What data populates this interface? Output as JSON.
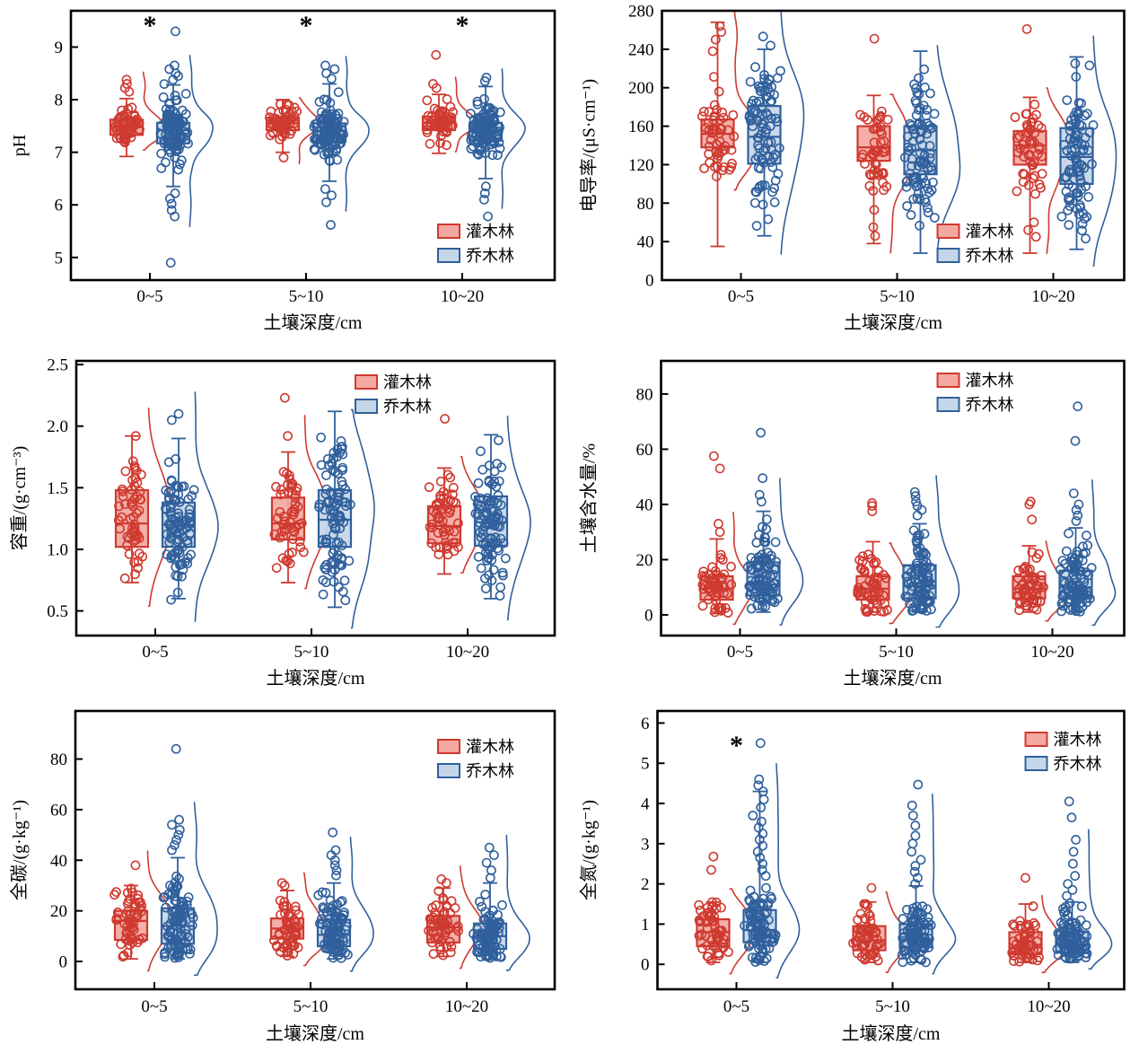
{
  "figure_title": "",
  "colors": {
    "shrub_stroke": "#cf3a30",
    "shrub_fill": "#f3a8a1",
    "arbor_stroke": "#30609c",
    "arbor_fill": "#c5d6e9",
    "axis": "#000000"
  },
  "legend": {
    "shrub_label": "灌木林",
    "arbor_label": "乔木林"
  },
  "chart_data": [
    {
      "type": "raincloud-box",
      "id": "ph",
      "row": 1,
      "ylabel": "pH",
      "xlabel": "土壤深度/cm",
      "categories": [
        "0~5",
        "5~10",
        "10~20"
      ],
      "ylim": [
        4.57,
        9.69
      ],
      "yticks": [
        5,
        6,
        7,
        8,
        9
      ],
      "ytick_decimals": 0,
      "x0": 79,
      "legend_pos": [
        488,
        250
      ],
      "sig": {
        "marks": [
          "*",
          "*",
          "*"
        ],
        "y": 9.42
      },
      "cats": [
        {
          "label": "0~5",
          "shrub": {
            "n": 55,
            "q1": 7.33,
            "med": 7.48,
            "q3": 7.62,
            "wlo": 6.92,
            "whi": 8.02,
            "lo": 6.9,
            "hi": 8.08,
            "tail": [
              8.15,
              8.22,
              8.3,
              8.38
            ],
            "out": []
          },
          "arbor": {
            "n": 105,
            "q1": 7.17,
            "med": 7.42,
            "q3": 7.56,
            "wlo": 6.35,
            "whi": 8.28,
            "lo": 6.3,
            "hi": 8.3,
            "tail": [
              8.38,
              8.45,
              8.5,
              8.58,
              8.65,
              6.22,
              6.12,
              6.02,
              5.9,
              5.78
            ],
            "out": [
              9.3,
              4.9
            ]
          }
        },
        {
          "label": "5~10",
          "shrub": {
            "n": 55,
            "q1": 7.42,
            "med": 7.55,
            "q3": 7.66,
            "wlo": 7.0,
            "whi": 8.0,
            "lo": 6.92,
            "hi": 8.05,
            "tail": [
              6.9
            ],
            "out": []
          },
          "arbor": {
            "n": 105,
            "q1": 7.2,
            "med": 7.4,
            "q3": 7.55,
            "wlo": 6.45,
            "whi": 8.3,
            "lo": 6.4,
            "hi": 8.32,
            "tail": [
              8.4,
              8.5,
              8.58,
              8.65,
              6.3,
              6.18,
              6.05
            ],
            "out": [
              5.62
            ]
          }
        },
        {
          "label": "10~20",
          "shrub": {
            "n": 55,
            "q1": 7.42,
            "med": 7.56,
            "q3": 7.68,
            "wlo": 6.98,
            "whi": 8.1,
            "lo": 6.85,
            "hi": 8.15,
            "tail": [
              8.22,
              8.3
            ],
            "out": [
              8.85
            ]
          },
          "arbor": {
            "n": 105,
            "q1": 7.22,
            "med": 7.43,
            "q3": 7.56,
            "wlo": 6.5,
            "whi": 8.25,
            "lo": 6.45,
            "hi": 8.3,
            "tail": [
              8.35,
              8.42,
              6.35,
              6.22,
              6.1
            ],
            "out": [
              5.78
            ]
          }
        }
      ]
    },
    {
      "type": "raincloud-box",
      "id": "ec",
      "row": 1,
      "ylabel": "电导率/(μS·cm⁻¹)",
      "xlabel": "土壤深度/cm",
      "categories": [
        "0~5",
        "5~10",
        "10~20"
      ],
      "ylim": [
        0,
        280
      ],
      "yticks": [
        0,
        40,
        80,
        120,
        160,
        200,
        240,
        280
      ],
      "ytick_decimals": 0,
      "x0": 103,
      "legend_pos": [
        410,
        250
      ],
      "sig": null,
      "cats": [
        {
          "label": "0~5",
          "shrub": {
            "n": 50,
            "q1": 138,
            "med": 152,
            "q3": 167,
            "wlo": 35,
            "whi": 268,
            "lo": 40,
            "hi": 228,
            "tail": [
              238,
              250,
              258,
              264
            ],
            "out": []
          },
          "arbor": {
            "n": 90,
            "q1": 121,
            "med": 149,
            "q3": 181,
            "wlo": 46,
            "whi": 240,
            "lo": 24,
            "hi": 262,
            "tail": [],
            "out": []
          }
        },
        {
          "label": "5~10",
          "shrub": {
            "n": 50,
            "q1": 124,
            "med": 138,
            "q3": 160,
            "wlo": 38,
            "whi": 192,
            "lo": 42,
            "hi": 192,
            "tail": [
              55,
              46
            ],
            "out": [
              251
            ]
          },
          "arbor": {
            "n": 90,
            "q1": 110,
            "med": 135,
            "q3": 160,
            "wlo": 28,
            "whi": 238,
            "lo": 26,
            "hi": 260,
            "tail": [],
            "out": []
          }
        },
        {
          "label": "10~20",
          "shrub": {
            "n": 50,
            "q1": 120,
            "med": 140,
            "q3": 155,
            "wlo": 28,
            "whi": 190,
            "lo": 45,
            "hi": 190,
            "tail": [
              60,
              52,
              45
            ],
            "out": [
              261
            ]
          },
          "arbor": {
            "n": 90,
            "q1": 100,
            "med": 128,
            "q3": 158,
            "wlo": 32,
            "whi": 232,
            "lo": 30,
            "hi": 262,
            "tail": [],
            "out": []
          }
        }
      ]
    },
    {
      "type": "raincloud-box",
      "id": "bulk",
      "row": 2,
      "ylabel": "容重/(g·cm⁻³)",
      "xlabel": "土壤深度/cm",
      "categories": [
        "0~5",
        "5~10",
        "10~20"
      ],
      "ylim": [
        0.3,
        2.53
      ],
      "yticks": [
        0.5,
        1.0,
        1.5,
        2.0,
        2.5
      ],
      "ytick_decimals": 1,
      "x0": 85,
      "legend_pos": [
        396,
        28
      ],
      "sig": null,
      "cats": [
        {
          "label": "0~5",
          "shrub": {
            "n": 55,
            "q1": 1.02,
            "med": 1.21,
            "q3": 1.48,
            "wlo": 0.73,
            "whi": 1.92,
            "lo": 0.73,
            "hi": 1.76,
            "tail": [
              1.92
            ],
            "out": []
          },
          "arbor": {
            "n": 95,
            "q1": 1.02,
            "med": 1.2,
            "q3": 1.38,
            "wlo": 0.6,
            "whi": 1.9,
            "lo": 0.58,
            "hi": 2.0,
            "tail": [
              2.05,
              2.1
            ],
            "out": []
          }
        },
        {
          "label": "5~10",
          "shrub": {
            "n": 55,
            "q1": 1.08,
            "med": 1.21,
            "q3": 1.42,
            "wlo": 0.73,
            "whi": 1.79,
            "lo": 0.73,
            "hi": 1.78,
            "tail": [
              1.92
            ],
            "out": [
              2.23
            ]
          },
          "arbor": {
            "n": 95,
            "q1": 1.02,
            "med": 1.24,
            "q3": 1.48,
            "wlo": 0.53,
            "whi": 2.12,
            "lo": 0.55,
            "hi": 2.12,
            "tail": [],
            "out": []
          }
        },
        {
          "label": "10~20",
          "shrub": {
            "n": 55,
            "q1": 1.05,
            "med": 1.19,
            "q3": 1.35,
            "wlo": 0.8,
            "whi": 1.66,
            "lo": 0.95,
            "hi": 1.66,
            "tail": [],
            "out": [
              2.06
            ]
          },
          "arbor": {
            "n": 95,
            "q1": 1.03,
            "med": 1.22,
            "q3": 1.43,
            "wlo": 0.6,
            "whi": 1.93,
            "lo": 0.6,
            "hi": 1.95,
            "tail": [],
            "out": []
          }
        }
      ]
    },
    {
      "type": "raincloud-box",
      "id": "water",
      "row": 2,
      "ylabel": "土壤含水量/%",
      "xlabel": "土壤深度/cm",
      "categories": [
        "0~5",
        "5~10",
        "10~20"
      ],
      "ylim": [
        -7.5,
        92
      ],
      "yticks": [
        0,
        20,
        40,
        60,
        80
      ],
      "ytick_decimals": 0,
      "x0": 102,
      "legend_pos": [
        410,
        26
      ],
      "sig": null,
      "cats": [
        {
          "label": "0~5",
          "shrub": {
            "n": 55,
            "q1": 5.5,
            "med": 9.5,
            "q3": 14,
            "wlo": 0.5,
            "whi": 27.5,
            "lo": 0.5,
            "hi": 27,
            "tail": [
              30,
              33
            ],
            "out": [
              53,
              57.5
            ]
          },
          "arbor": {
            "n": 95,
            "q1": 7,
            "med": 11,
            "q3": 19,
            "wlo": 1,
            "whi": 37.5,
            "lo": 1,
            "hi": 38,
            "tail": [
              41,
              43.5
            ],
            "out": [
              49.5,
              66
            ]
          }
        },
        {
          "label": "5~10",
          "shrub": {
            "n": 55,
            "q1": 5.5,
            "med": 9.5,
            "q3": 14,
            "wlo": 1,
            "whi": 26.5,
            "lo": 1,
            "hi": 25,
            "tail": [],
            "out": [
              37.5,
              39.5,
              40.5
            ]
          },
          "arbor": {
            "n": 95,
            "q1": 6,
            "med": 10.5,
            "q3": 18,
            "wlo": 1,
            "whi": 33,
            "lo": 1,
            "hi": 32,
            "tail": [
              36,
              38,
              39.5,
              41,
              43,
              44.5
            ],
            "out": []
          }
        },
        {
          "label": "10~20",
          "shrub": {
            "n": 55,
            "q1": 6,
            "med": 9.5,
            "q3": 14,
            "wlo": 1,
            "whi": 25,
            "lo": 1,
            "hi": 25,
            "tail": [],
            "out": [
              34.5,
              40,
              41
            ]
          },
          "arbor": {
            "n": 95,
            "q1": 6,
            "med": 10,
            "q3": 16,
            "wlo": 1,
            "whi": 31.5,
            "lo": 1,
            "hi": 32,
            "tail": [
              34,
              36,
              38,
              40,
              44
            ],
            "out": [
              63,
              75.5
            ]
          }
        }
      ]
    },
    {
      "type": "raincloud-box",
      "id": "carbon",
      "row": 3,
      "ylabel": "全碳/(g·kg⁻¹)",
      "xlabel": "土壤深度/cm",
      "categories": [
        "0~5",
        "5~10",
        "10~20"
      ],
      "ylim": [
        -11,
        99
      ],
      "yticks": [
        0,
        20,
        40,
        60,
        80
      ],
      "ytick_decimals": 0,
      "x0": 84,
      "legend_pos": [
        488,
        44
      ],
      "sig": null,
      "cats": [
        {
          "label": "0~5",
          "shrub": {
            "n": 55,
            "q1": 8.5,
            "med": 16,
            "q3": 20,
            "wlo": 1,
            "whi": 30,
            "lo": 1,
            "hi": 30,
            "tail": [
              38
            ],
            "out": []
          },
          "arbor": {
            "n": 95,
            "q1": 7,
            "med": 14,
            "q3": 21,
            "wlo": 1,
            "whi": 41,
            "lo": 1,
            "hi": 42,
            "tail": [
              44,
              46,
              48,
              50,
              52,
              54,
              56
            ],
            "out": [
              84
            ]
          }
        },
        {
          "label": "5~10",
          "shrub": {
            "n": 55,
            "q1": 9,
            "med": 13,
            "q3": 17,
            "wlo": 2,
            "whi": 28,
            "lo": 2,
            "hi": 28,
            "tail": [
              30,
              31
            ],
            "out": []
          },
          "arbor": {
            "n": 95,
            "q1": 6,
            "med": 10.5,
            "q3": 16.5,
            "wlo": 1,
            "whi": 31,
            "lo": 1,
            "hi": 32,
            "tail": [
              34,
              36,
              38,
              40,
              42,
              44
            ],
            "out": [
              51
            ]
          }
        },
        {
          "label": "10~20",
          "shrub": {
            "n": 55,
            "q1": 7.5,
            "med": 13.5,
            "q3": 18,
            "wlo": 2,
            "whi": 29,
            "lo": 2,
            "hi": 28,
            "tail": [
              31,
              32.5
            ],
            "out": []
          },
          "arbor": {
            "n": 95,
            "q1": 5,
            "med": 10,
            "q3": 15,
            "wlo": 1,
            "whi": 31,
            "lo": 1,
            "hi": 31,
            "tail": [
              33,
              36,
              39,
              42,
              45
            ],
            "out": []
          }
        }
      ]
    },
    {
      "type": "raincloud-box",
      "id": "nitrogen",
      "row": 3,
      "ylabel": "全氮/(g·kg⁻¹)",
      "xlabel": "土壤深度/cm",
      "categories": [
        "0~5",
        "5~10",
        "10~20"
      ],
      "ylim": [
        -0.62,
        6.3
      ],
      "yticks": [
        0,
        1,
        2,
        3,
        4,
        5,
        6
      ],
      "ytick_decimals": 0,
      "x0": 98,
      "legend_pos": [
        508,
        36
      ],
      "sig": {
        "marks": [
          "*",
          "",
          ""
        ],
        "y": 5.45
      },
      "cats": [
        {
          "label": "0~5",
          "shrub": {
            "n": 55,
            "q1": 0.45,
            "med": 0.8,
            "q3": 1.12,
            "wlo": 0.05,
            "whi": 1.55,
            "lo": 0.05,
            "hi": 1.55,
            "tail": [],
            "out": [
              2.35,
              2.68
            ]
          },
          "arbor": {
            "n": 95,
            "q1": 0.55,
            "med": 0.85,
            "q3": 1.35,
            "wlo": 0.05,
            "whi": 4.3,
            "lo": 0.05,
            "hi": 2.1,
            "tail": [
              2.2,
              2.35,
              2.5,
              2.65,
              2.8,
              2.95,
              3.1,
              3.25,
              3.4,
              3.55,
              3.7,
              3.9,
              4.1,
              4.3,
              4.45,
              4.6
            ],
            "out": [
              5.5
            ]
          }
        },
        {
          "label": "5~10",
          "shrub": {
            "n": 55,
            "q1": 0.35,
            "med": 0.6,
            "q3": 0.95,
            "wlo": 0.05,
            "whi": 1.55,
            "lo": 0.05,
            "hi": 1.6,
            "tail": [],
            "out": [
              1.9
            ]
          },
          "arbor": {
            "n": 95,
            "q1": 0.42,
            "med": 0.62,
            "q3": 1.0,
            "wlo": 0.05,
            "whi": 1.95,
            "lo": 0.05,
            "hi": 1.9,
            "tail": [
              2.0,
              2.15,
              2.3,
              2.45,
              2.6,
              2.8,
              3.0,
              3.2,
              3.45,
              3.7,
              3.95
            ],
            "out": [
              4.47
            ]
          }
        },
        {
          "label": "10~20",
          "shrub": {
            "n": 55,
            "q1": 0.25,
            "med": 0.42,
            "q3": 0.8,
            "wlo": 0.05,
            "whi": 1.5,
            "lo": 0.05,
            "hi": 1.5,
            "tail": [],
            "out": [
              2.15
            ]
          },
          "arbor": {
            "n": 95,
            "q1": 0.3,
            "med": 0.5,
            "q3": 0.82,
            "wlo": 0.05,
            "whi": 1.55,
            "lo": 0.05,
            "hi": 1.6,
            "tail": [
              1.7,
              1.85,
              2.0,
              2.2,
              2.5,
              2.8,
              3.1
            ],
            "out": [
              3.65,
              4.05
            ]
          }
        }
      ]
    }
  ]
}
